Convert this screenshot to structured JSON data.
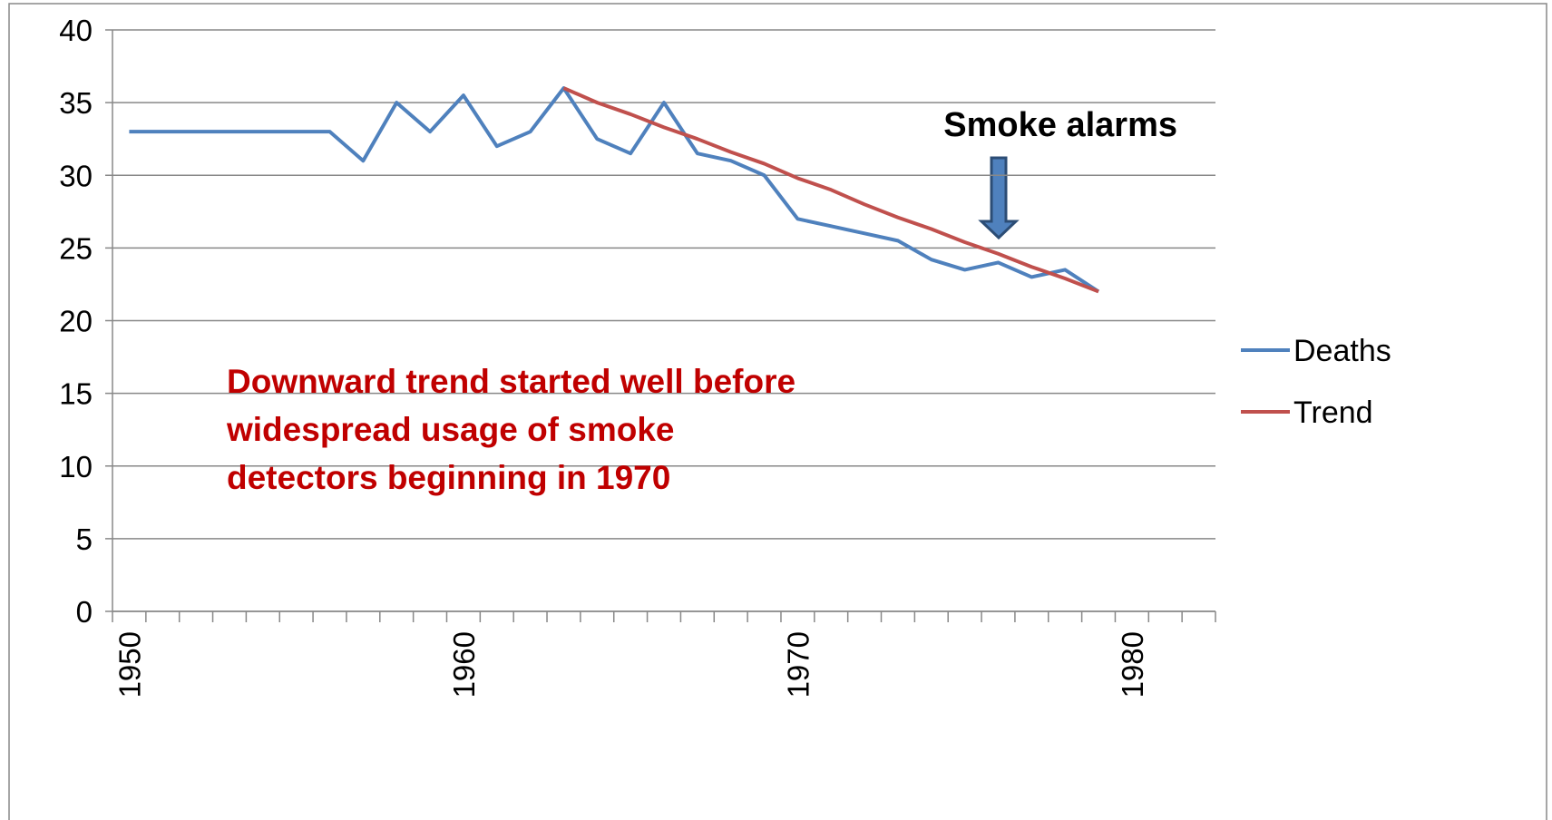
{
  "chart_data": {
    "type": "line",
    "categories": [
      "1950",
      null,
      null,
      null,
      null,
      null,
      null,
      null,
      null,
      null,
      "1960",
      null,
      null,
      null,
      null,
      null,
      null,
      null,
      null,
      null,
      "1970",
      null,
      null,
      null,
      null,
      null,
      null,
      null,
      null,
      null,
      "1980",
      null,
      null
    ],
    "series": [
      {
        "name": "Deaths",
        "color": "#4f81bd",
        "values": [
          33,
          33,
          33,
          33,
          33,
          33,
          33,
          31,
          35,
          33,
          35.5,
          32,
          33,
          36,
          32.5,
          31.5,
          35,
          31.5,
          31,
          30,
          27,
          26.5,
          26,
          25.5,
          24.2,
          23.5,
          24,
          23,
          23.5,
          22,
          null,
          null,
          null
        ]
      },
      {
        "name": "Trend",
        "color": "#c0504d",
        "values": [
          null,
          null,
          null,
          null,
          null,
          null,
          null,
          null,
          null,
          null,
          null,
          null,
          null,
          36,
          35,
          34.2,
          33.3,
          32.5,
          31.6,
          30.8,
          29.8,
          29,
          28,
          27.1,
          26.3,
          25.4,
          24.6,
          23.7,
          22.9,
          22,
          null,
          null,
          null
        ]
      }
    ],
    "ylim": [
      0,
      40
    ],
    "yticks": [
      0,
      5,
      10,
      15,
      20,
      25,
      30,
      35,
      40
    ],
    "grid": true,
    "legend": "right",
    "annotations": [
      "Smoke alarms",
      "Downward trend started well before widespread usage of smoke detectors beginning in 1970"
    ]
  }
}
